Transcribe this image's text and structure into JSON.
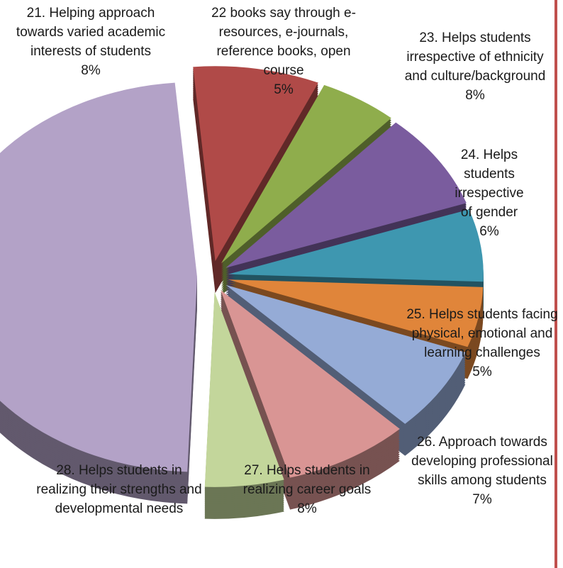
{
  "chart_data": {
    "type": "pie",
    "categories": [
      "21. Helping approach towards varied academic interests of students",
      "22 books say through e-resources, e-journals, reference books, open course",
      "23. Helps students irrespective of ethnicity and culture/background",
      "24. Helps students irrespective of gender",
      "25. Helps students facing physical, emotional and learning challenges",
      "26. Approach towards developing professional skills among students",
      "27. Helps students in realizing career goals",
      "28. Helps students in realizing their strengths and developmental needs",
      null
    ],
    "values": [
      8,
      5,
      8,
      6,
      5,
      7,
      8,
      5,
      48
    ],
    "value_labels": [
      "8%",
      "5%",
      "8%",
      "6%",
      "5%",
      "7%",
      "8%",
      null,
      null
    ],
    "colors": [
      "#b04a48",
      "#8fad4c",
      "#7a5c9e",
      "#3e97b0",
      "#e0853a",
      "#95abd6",
      "#d99594",
      "#c3d69b",
      "#b3a2c7"
    ]
  }
}
